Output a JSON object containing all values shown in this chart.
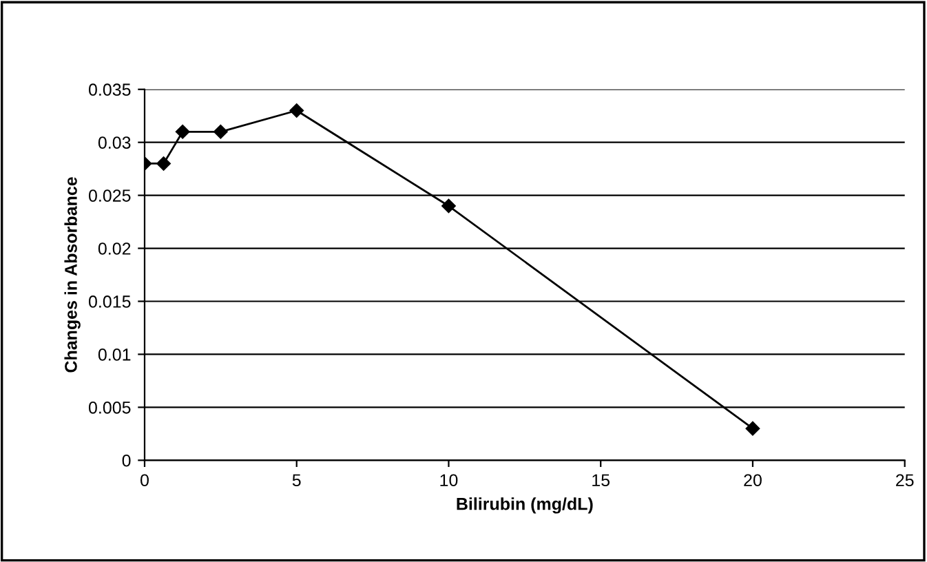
{
  "chart_data": {
    "type": "line",
    "xlabel": "Bilirubin (mg/dL)",
    "ylabel": "Changes in Absorbance",
    "x": [
      0,
      0.625,
      1.25,
      2.5,
      5,
      10,
      20
    ],
    "series": [
      {
        "color": "#000000",
        "values": [
          0.028,
          0.028,
          0.031,
          0.031,
          0.033,
          0.024,
          0.003
        ]
      }
    ],
    "xlim": [
      0,
      25
    ],
    "xticks": [
      0,
      5,
      10,
      15,
      20,
      25
    ],
    "ylim": [
      0,
      0.035
    ],
    "yticks": [
      0,
      0.005,
      0.01,
      0.015,
      0.02,
      0.025,
      0.03,
      0.035
    ],
    "grid": "y",
    "marker": "diamond",
    "line_style": "solid",
    "legend": false
  }
}
